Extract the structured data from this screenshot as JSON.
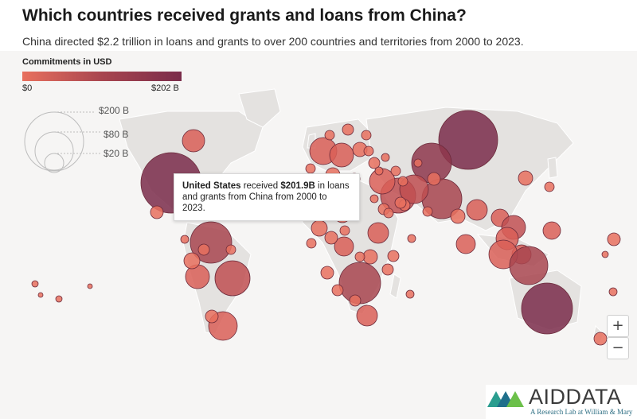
{
  "header": {
    "title": "Which countries received grants and loans from China?",
    "subtitle": "China directed $2.2 trillion in loans and grants to over 200 countries and territories from 2000 to 2023."
  },
  "legend": {
    "title": "Commitments in USD",
    "min_label": "$0",
    "max_label": "$202 B",
    "color_low": "#e8705e",
    "color_high": "#7a2c4a",
    "size_labels": [
      "$200 B",
      "$80 B",
      "$20 B"
    ]
  },
  "tooltip": {
    "country": "United States",
    "pre": " received ",
    "amount": "$201.9B",
    "post": " in loans and grants from China from 2000 to 2023."
  },
  "controls": {
    "zoom_in": "+",
    "zoom_out": "−"
  },
  "logo": {
    "aid": "AID",
    "data": "DATA",
    "tagline": "A Research Lab at William & Mary"
  },
  "chart_data": {
    "type": "proportional-symbol-map",
    "value_unit": "USD billions",
    "highlighted": {
      "country": "United States",
      "value": 201.9
    },
    "max_value": 202
  }
}
